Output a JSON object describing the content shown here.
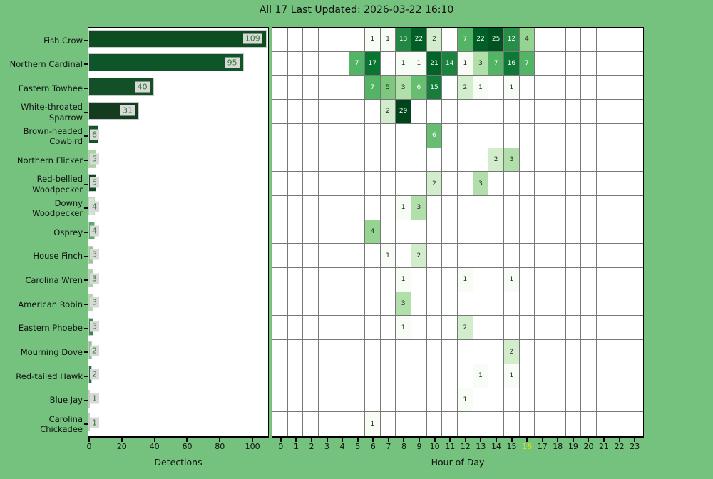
{
  "title": "All 17 Last Updated: 2026-03-22 16:10",
  "axes": {
    "bar_xlabel": "Detections",
    "heat_xlabel": "Hour of Day"
  },
  "colors": {
    "background": "#74c27e",
    "plot_background": "#ffffff",
    "grid_line": "#777777",
    "spine": "#000000",
    "bar_label_text": "#2e7d32",
    "bar_label_box": "#d9d9d9",
    "tick_label": "#111111",
    "current_hour_label": "#e3e300",
    "cell_text_dark": "#262626",
    "cell_text_light": "#ffffff",
    "colormap_stops": [
      "#f7fcf5",
      "#e5f5e0",
      "#c7e9c0",
      "#a1d99b",
      "#74c476",
      "#41ab5d",
      "#238b45",
      "#006d2c",
      "#00441b"
    ]
  },
  "chart_data": [
    {
      "type": "bar",
      "title": "All 17 Last Updated: 2026-03-22 16:10",
      "orientation": "horizontal",
      "xlabel": "Detections",
      "xlim": [
        0,
        110
      ],
      "xticks": [
        0,
        20,
        40,
        60,
        80,
        100
      ],
      "grid": false,
      "categories": [
        "Fish Crow",
        "Northern Cardinal",
        "Eastern Towhee",
        "White-throated\nSparrow",
        "Brown-headed\nCowbird",
        "Northern Flicker",
        "Red-bellied\nWoodpecker",
        "Downy\nWoodpecker",
        "Osprey",
        "House Finch",
        "Carolina Wren",
        "American Robin",
        "Eastern Phoebe",
        "Mourning Dove",
        "Red-tailed Hawk",
        "Blue Jay",
        "Carolina\nChickadee"
      ],
      "values": [
        109,
        95,
        40,
        31,
        6,
        5,
        5,
        4,
        4,
        3,
        3,
        3,
        3,
        2,
        2,
        1,
        1
      ],
      "bar_colors": [
        "#0d4d22",
        "#0e5629",
        "#134f27",
        "#123c1d",
        "#135426",
        "#a4d79f",
        "#0b4a20",
        "#cfeac9",
        "#4fb163",
        "#8ccd8e",
        "#a4d79f",
        "#aedca8",
        "#2e8f49",
        "#81c983",
        "#1d7338",
        "#ecf7e8",
        "#eef8ea"
      ]
    },
    {
      "type": "heatmap",
      "xlabel": "Hour of Day",
      "x": [
        0,
        1,
        2,
        3,
        4,
        5,
        6,
        7,
        8,
        9,
        10,
        11,
        12,
        13,
        14,
        15,
        16,
        17,
        18,
        19,
        20,
        21,
        22,
        23
      ],
      "highlighted_hour": 16,
      "rows": [
        "Fish Crow",
        "Northern Cardinal",
        "Eastern Towhee",
        "White-throated Sparrow",
        "Brown-headed Cowbird",
        "Northern Flicker",
        "Red-bellied Woodpecker",
        "Downy Woodpecker",
        "Osprey",
        "House Finch",
        "Carolina Wren",
        "American Robin",
        "Eastern Phoebe",
        "Mourning Dove",
        "Red-tailed Hawk",
        "Blue Jay",
        "Carolina Chickadee"
      ],
      "colormap": "Greens",
      "norm": "log",
      "vmax": 29,
      "matrix": [
        [
          0,
          0,
          0,
          0,
          0,
          0,
          1,
          1,
          13,
          22,
          2,
          0,
          7,
          22,
          25,
          12,
          4,
          0,
          0,
          0,
          0,
          0,
          0,
          0
        ],
        [
          0,
          0,
          0,
          0,
          0,
          7,
          17,
          0,
          1,
          1,
          21,
          14,
          1,
          3,
          7,
          16,
          7,
          0,
          0,
          0,
          0,
          0,
          0,
          0
        ],
        [
          0,
          0,
          0,
          0,
          0,
          0,
          7,
          5,
          3,
          6,
          15,
          0,
          2,
          1,
          0,
          1,
          0,
          0,
          0,
          0,
          0,
          0,
          0,
          0
        ],
        [
          0,
          0,
          0,
          0,
          0,
          0,
          0,
          2,
          29,
          0,
          0,
          0,
          0,
          0,
          0,
          0,
          0,
          0,
          0,
          0,
          0,
          0,
          0,
          0
        ],
        [
          0,
          0,
          0,
          0,
          0,
          0,
          0,
          0,
          0,
          0,
          6,
          0,
          0,
          0,
          0,
          0,
          0,
          0,
          0,
          0,
          0,
          0,
          0,
          0
        ],
        [
          0,
          0,
          0,
          0,
          0,
          0,
          0,
          0,
          0,
          0,
          0,
          0,
          0,
          0,
          2,
          3,
          0,
          0,
          0,
          0,
          0,
          0,
          0,
          0
        ],
        [
          0,
          0,
          0,
          0,
          0,
          0,
          0,
          0,
          0,
          0,
          2,
          0,
          0,
          3,
          0,
          0,
          0,
          0,
          0,
          0,
          0,
          0,
          0,
          0
        ],
        [
          0,
          0,
          0,
          0,
          0,
          0,
          0,
          0,
          1,
          3,
          0,
          0,
          0,
          0,
          0,
          0,
          0,
          0,
          0,
          0,
          0,
          0,
          0,
          0
        ],
        [
          0,
          0,
          0,
          0,
          0,
          0,
          4,
          0,
          0,
          0,
          0,
          0,
          0,
          0,
          0,
          0,
          0,
          0,
          0,
          0,
          0,
          0,
          0,
          0
        ],
        [
          0,
          0,
          0,
          0,
          0,
          0,
          0,
          1,
          0,
          2,
          0,
          0,
          0,
          0,
          0,
          0,
          0,
          0,
          0,
          0,
          0,
          0,
          0,
          0
        ],
        [
          0,
          0,
          0,
          0,
          0,
          0,
          0,
          0,
          1,
          0,
          0,
          0,
          1,
          0,
          0,
          1,
          0,
          0,
          0,
          0,
          0,
          0,
          0,
          0
        ],
        [
          0,
          0,
          0,
          0,
          0,
          0,
          0,
          0,
          3,
          0,
          0,
          0,
          0,
          0,
          0,
          0,
          0,
          0,
          0,
          0,
          0,
          0,
          0,
          0
        ],
        [
          0,
          0,
          0,
          0,
          0,
          0,
          0,
          0,
          1,
          0,
          0,
          0,
          2,
          0,
          0,
          0,
          0,
          0,
          0,
          0,
          0,
          0,
          0,
          0
        ],
        [
          0,
          0,
          0,
          0,
          0,
          0,
          0,
          0,
          0,
          0,
          0,
          0,
          0,
          0,
          0,
          2,
          0,
          0,
          0,
          0,
          0,
          0,
          0,
          0
        ],
        [
          0,
          0,
          0,
          0,
          0,
          0,
          0,
          0,
          0,
          0,
          0,
          0,
          0,
          1,
          0,
          1,
          0,
          0,
          0,
          0,
          0,
          0,
          0,
          0
        ],
        [
          0,
          0,
          0,
          0,
          0,
          0,
          0,
          0,
          0,
          0,
          0,
          0,
          1,
          0,
          0,
          0,
          0,
          0,
          0,
          0,
          0,
          0,
          0,
          0
        ],
        [
          0,
          0,
          0,
          0,
          0,
          0,
          1,
          0,
          0,
          0,
          0,
          0,
          0,
          0,
          0,
          0,
          0,
          0,
          0,
          0,
          0,
          0,
          0,
          0
        ]
      ]
    }
  ]
}
